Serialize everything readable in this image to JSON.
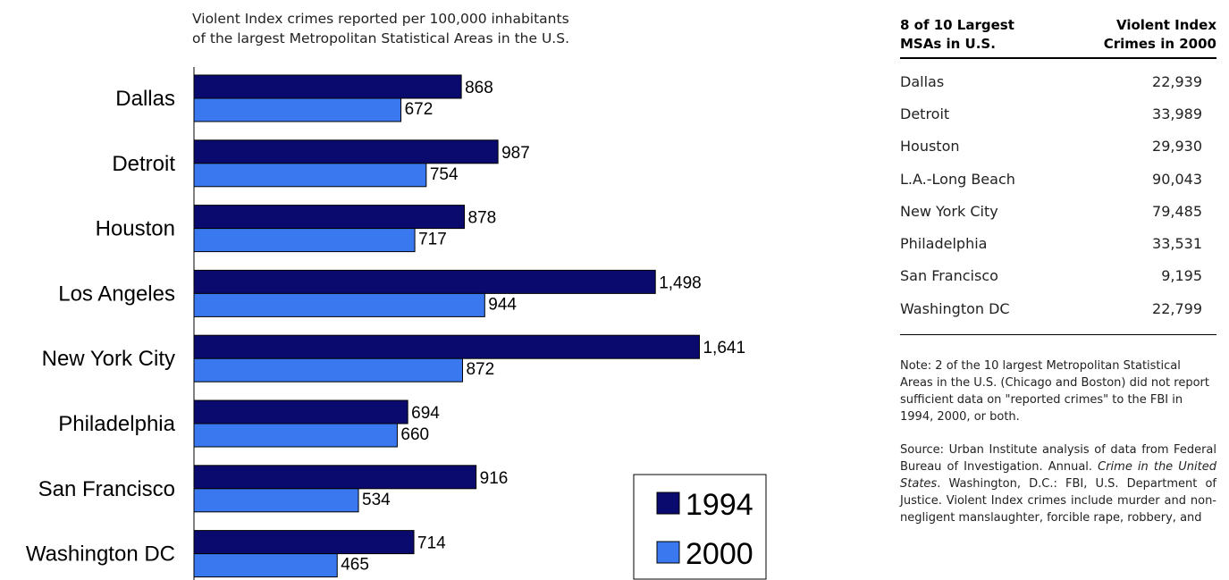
{
  "chart_data": {
    "type": "bar",
    "orientation": "horizontal",
    "subtitle_lines": [
      "Violent Index crimes reported per 100,000 inhabitants",
      "of the largest Metropolitan Statistical Areas in the U.S."
    ],
    "categories": [
      "Dallas",
      "Detroit",
      "Houston",
      "Los Angeles",
      "New York City",
      "Philadelphia",
      "San Francisco",
      "Washington DC"
    ],
    "series": [
      {
        "name": "1994",
        "values": [
          868,
          987,
          878,
          1498,
          1641,
          694,
          916,
          714
        ],
        "labels": [
          "868",
          "987",
          "878",
          "1,498",
          "1,641",
          "694",
          "916",
          "714"
        ],
        "color": "#0a0a6e"
      },
      {
        "name": "2000",
        "values": [
          672,
          754,
          717,
          944,
          872,
          660,
          534,
          465
        ],
        "labels": [
          "672",
          "754",
          "717",
          "944",
          "872",
          "660",
          "534",
          "465"
        ],
        "color": "#3a78f0"
      }
    ],
    "legend_placement": "bottom-right",
    "grid": false
  },
  "table": {
    "header_left": [
      "8 of 10 Largest",
      "MSAs in U.S."
    ],
    "header_right": [
      "Violent Index",
      "Crimes in 2000"
    ],
    "rows": [
      {
        "city": "Dallas",
        "value": "22,939"
      },
      {
        "city": "Detroit",
        "value": "33,989"
      },
      {
        "city": "Houston",
        "value": "29,930"
      },
      {
        "city": "L.A.-Long Beach",
        "value": "90,043"
      },
      {
        "city": "New York City",
        "value": "79,485"
      },
      {
        "city": "Philadelphia",
        "value": "33,531"
      },
      {
        "city": "San Francisco",
        "value": "9,195"
      },
      {
        "city": "Washington DC",
        "value": "22,799"
      }
    ]
  },
  "note": "Note: 2 of the 10 largest Metropolitan Statistical Areas in the U.S. (Chicago and Boston) did not report sufficient data on \"reported crimes\" to the FBI in 1994, 2000, or both.",
  "source": {
    "part1": "Source: Urban Institute analysis of data from Federal Bureau of Investigation. Annual. ",
    "italic": "Crime in the United States",
    "part2": ". Washington, D.C.: FBI, U.S. Department of Justice.  Violent Index crimes include murder and non-negligent manslaughter, forcible rape, robbery, and"
  }
}
